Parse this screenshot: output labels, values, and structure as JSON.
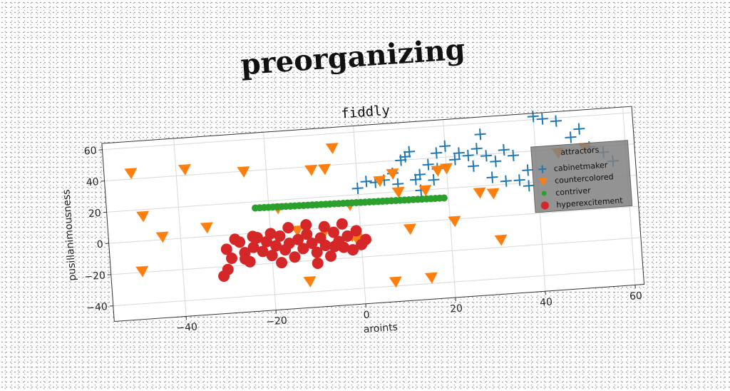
{
  "figure_title": "preorganizing",
  "chart_data": {
    "type": "scatter",
    "title": "fiddly",
    "xlabel": "aroints",
    "ylabel": "pusillanimousness",
    "xlim": [
      -56,
      62
    ],
    "ylim": [
      -50,
      64
    ],
    "xticks": [
      -40,
      -20,
      0,
      20,
      40,
      60
    ],
    "yticks": [
      -40,
      -20,
      0,
      20,
      40,
      60
    ],
    "grid": true,
    "legend": {
      "title": "attractors",
      "placement": "center-right"
    },
    "colors": {
      "cabinetmaker": "#1f77b4",
      "countercolored": "#ff7f0e",
      "contriver": "#2ca02c",
      "hyperexcitement": "#d62728",
      "legend_bg": "#808080"
    },
    "series": [
      {
        "name": "cabinetmaker",
        "marker": "plus",
        "points": [
          [
            10,
            40
          ],
          [
            11,
            42
          ],
          [
            12,
            45
          ],
          [
            14,
            30
          ],
          [
            16,
            36
          ],
          [
            18,
            33
          ],
          [
            20,
            47
          ],
          [
            23,
            42
          ],
          [
            25,
            40
          ],
          [
            27,
            44
          ],
          [
            28,
            53
          ],
          [
            29,
            39
          ],
          [
            31,
            35
          ],
          [
            33,
            42
          ],
          [
            35,
            38
          ],
          [
            38,
            28
          ],
          [
            40,
            62
          ],
          [
            42,
            60
          ],
          [
            45,
            58
          ],
          [
            48,
            47
          ],
          [
            50,
            52
          ],
          [
            52,
            40
          ],
          [
            55,
            36
          ],
          [
            57,
            30
          ],
          [
            30,
            25
          ],
          [
            33,
            22
          ],
          [
            36,
            22
          ],
          [
            38,
            18
          ],
          [
            6,
            28
          ],
          [
            8,
            32
          ],
          [
            4,
            27
          ],
          [
            0,
            24
          ],
          [
            2,
            28
          ],
          [
            13,
            27
          ],
          [
            17,
            26
          ],
          [
            22,
            38
          ],
          [
            26,
            33
          ],
          [
            14,
            20
          ],
          [
            9,
            25
          ],
          [
            18,
            43
          ]
        ]
      },
      {
        "name": "countercolored",
        "marker": "triangle_down",
        "points": [
          [
            -50,
            44
          ],
          [
            -48,
            16
          ],
          [
            -44,
            2
          ],
          [
            -38,
            44
          ],
          [
            -34,
            6
          ],
          [
            -25,
            40
          ],
          [
            -18,
            15
          ],
          [
            -10,
            38
          ],
          [
            -7,
            38
          ],
          [
            -5,
            51
          ],
          [
            -2,
            14
          ],
          [
            -1,
            -8
          ],
          [
            5,
            28
          ],
          [
            8,
            32
          ],
          [
            9,
            20
          ],
          [
            15,
            20
          ],
          [
            18,
            32
          ],
          [
            20,
            33
          ],
          [
            21,
            -1
          ],
          [
            11,
            -4
          ],
          [
            27,
            16
          ],
          [
            30,
            15
          ],
          [
            31,
            -15
          ],
          [
            -49,
            -19
          ],
          [
            -12,
            -33
          ],
          [
            7,
            -37
          ],
          [
            15,
            -36
          ],
          [
            -2,
            -6
          ],
          [
            45,
            38
          ],
          [
            51,
            40
          ],
          [
            -8,
            -2
          ],
          [
            -14,
            0
          ]
        ]
      },
      {
        "name": "contriver",
        "marker": "circle_small",
        "line": {
          "x_start": -23,
          "x_end": 19,
          "y_start": 16,
          "y_end": 14,
          "count": 44
        }
      },
      {
        "name": "hyperexcitement",
        "marker": "circle",
        "points": [
          [
            -30,
            -9
          ],
          [
            -29,
            -15
          ],
          [
            -27,
            -5
          ],
          [
            -26,
            -12
          ],
          [
            -25,
            -18
          ],
          [
            -24,
            -9
          ],
          [
            -23,
            -3
          ],
          [
            -22,
            -12
          ],
          [
            -21,
            -6
          ],
          [
            -20,
            -15
          ],
          [
            -19,
            -9
          ],
          [
            -18,
            -3
          ],
          [
            -17,
            -12
          ],
          [
            -16,
            -8
          ],
          [
            -15,
            -17
          ],
          [
            -14,
            -6
          ],
          [
            -13,
            -12
          ],
          [
            -12,
            -3
          ],
          [
            -11,
            -9
          ],
          [
            -10,
            -15
          ],
          [
            -9,
            -6
          ],
          [
            -8,
            -11
          ],
          [
            -7,
            -18
          ],
          [
            -6,
            -3
          ],
          [
            -5,
            -9
          ],
          [
            -4,
            -13
          ],
          [
            -3,
            -6
          ],
          [
            -2,
            -15
          ],
          [
            -1,
            -3
          ],
          [
            0,
            -12
          ],
          [
            1,
            -9
          ],
          [
            -28,
            -3
          ],
          [
            -31,
            -26
          ],
          [
            -30,
            -22
          ],
          [
            -24,
            -2
          ],
          [
            -20,
            -1
          ],
          [
            -16,
            2
          ],
          [
            -12,
            3
          ],
          [
            -8,
            1
          ],
          [
            -4,
            2
          ],
          [
            -26,
            -16
          ],
          [
            -18,
            -20
          ],
          [
            -10,
            -22
          ],
          [
            -6,
            -12
          ]
        ]
      }
    ]
  }
}
